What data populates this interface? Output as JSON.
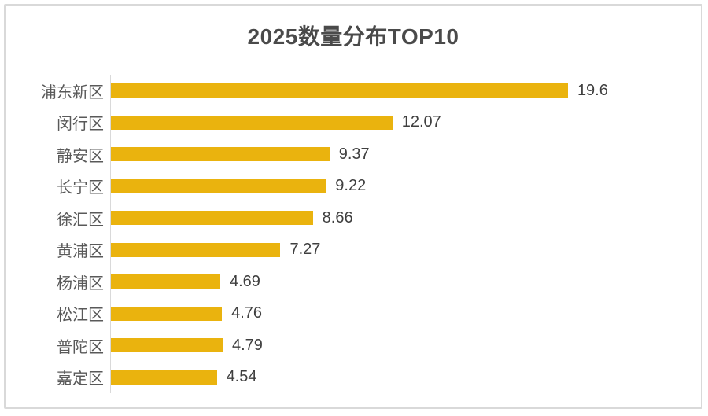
{
  "title": "2025数量分布TOP10",
  "colors": {
    "bar": "#EAB30E",
    "title_text": "#4a4a4a",
    "category_text": "#595959",
    "value_text": "#3f3f3f",
    "axis_line": "#d9d9d9",
    "frame_border": "#d9d9d9",
    "background": "#ffffff"
  },
  "chart_data": {
    "type": "bar",
    "orientation": "horizontal",
    "title": "2025数量分布TOP10",
    "categories": [
      "浦东新区",
      "闵行区",
      "静安区",
      "长宁区",
      "徐汇区",
      "黄浦区",
      "杨浦区",
      "松江区",
      "普陀区",
      "嘉定区"
    ],
    "values": [
      19.6,
      12.07,
      9.37,
      9.22,
      8.66,
      7.27,
      4.69,
      4.76,
      4.79,
      4.54
    ],
    "value_labels": [
      "19.6",
      "12.07",
      "9.37",
      "9.22",
      "8.66",
      "7.27",
      "4.69",
      "4.76",
      "4.79",
      "4.54"
    ],
    "xlabel": "",
    "ylabel": "",
    "xlim": [
      0,
      25
    ],
    "grid": false,
    "legend": "none",
    "data_labels_position": "outside-end",
    "bar_color": "#EAB30E"
  }
}
